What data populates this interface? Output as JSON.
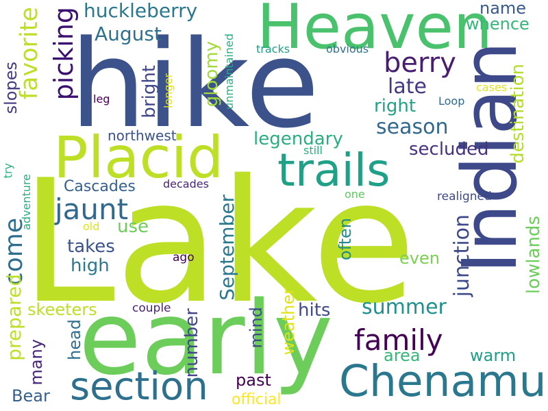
{
  "word_cloud": {
    "palette": {
      "yellow_green": "#bddf26",
      "green": "#6ccd5a",
      "teal_green": "#29af7f",
      "teal": "#21918c",
      "blue_teal": "#2a788e",
      "steel_blue": "#355f8d",
      "indigo": "#443983",
      "deep_purple": "#482475",
      "yellow": "#dfe318"
    },
    "words": [
      {
        "text": "Lake",
        "color": "#bddf26"
      },
      {
        "text": "hike",
        "color": "#3b528b"
      },
      {
        "text": "Heaven",
        "color": "#4ac16d"
      },
      {
        "text": "Indian",
        "color": "#3e4989"
      },
      {
        "text": "early",
        "color": "#6ccd5a"
      },
      {
        "text": "Placid",
        "color": "#bddf26"
      },
      {
        "text": "trails",
        "color": "#1fa187"
      },
      {
        "text": "Chenamus",
        "color": "#2a788e"
      },
      {
        "text": "section",
        "color": "#2d708e"
      },
      {
        "text": "family",
        "color": "#440154"
      },
      {
        "text": "jaunt",
        "color": "#31688e"
      },
      {
        "text": "berry",
        "color": "#481f70"
      },
      {
        "text": "picking",
        "color": "#3b0f70"
      },
      {
        "text": "favorite",
        "color": "#bddf26"
      },
      {
        "text": "huckleberry",
        "color": "#2a788e"
      },
      {
        "text": "August",
        "color": "#2d708e"
      },
      {
        "text": "season",
        "color": "#31688e"
      },
      {
        "text": "late",
        "color": "#453781"
      },
      {
        "text": "right",
        "color": "#20a386"
      },
      {
        "text": "secluded",
        "color": "#46327e"
      },
      {
        "text": "destination",
        "color": "#b5de2b"
      },
      {
        "text": "come",
        "color": "#2e6e8e"
      },
      {
        "text": "September",
        "color": "#2a788e"
      },
      {
        "text": "summer",
        "color": "#21918c"
      },
      {
        "text": "junction",
        "color": "#3e4989"
      },
      {
        "text": "lowlands",
        "color": "#6ccd5a"
      },
      {
        "text": "prepared",
        "color": "#bddf26"
      },
      {
        "text": "legendary",
        "color": "#29af7f"
      },
      {
        "text": "Cascades",
        "color": "#355f8d"
      },
      {
        "text": "gloomy",
        "color": "#a2da37"
      },
      {
        "text": "bright",
        "color": "#404688"
      },
      {
        "text": "slopes",
        "color": "#443983"
      },
      {
        "text": "name",
        "color": "#38598c"
      },
      {
        "text": "whence",
        "color": "#35b779"
      },
      {
        "text": "often",
        "color": "#228c8d"
      },
      {
        "text": "even",
        "color": "#7ad151"
      },
      {
        "text": "high",
        "color": "#2a788e"
      },
      {
        "text": "takes",
        "color": "#3b528b"
      },
      {
        "text": "use",
        "color": "#6ccd5a"
      },
      {
        "text": "hits",
        "color": "#3e4989"
      },
      {
        "text": "weather",
        "color": "#dfe318"
      },
      {
        "text": "mind",
        "color": "#3e4989"
      },
      {
        "text": "number",
        "color": "#404688"
      },
      {
        "text": "head",
        "color": "#2e6e8e"
      },
      {
        "text": "many",
        "color": "#482878"
      },
      {
        "text": "skeeters",
        "color": "#bddf26"
      },
      {
        "text": "area",
        "color": "#35b779"
      },
      {
        "text": "warm",
        "color": "#1f9e89"
      },
      {
        "text": "past",
        "color": "#440154"
      },
      {
        "text": "Bear",
        "color": "#355f8d"
      },
      {
        "text": "official",
        "color": "#fde725"
      },
      {
        "text": "northwest",
        "color": "#3b528b"
      },
      {
        "text": "decades",
        "color": "#482475"
      },
      {
        "text": "realigned",
        "color": "#3e4989"
      },
      {
        "text": "couple",
        "color": "#481f70"
      },
      {
        "text": "ago",
        "color": "#440154"
      },
      {
        "text": "old",
        "color": "#dfe318"
      },
      {
        "text": "adventure",
        "color": "#26ad81"
      },
      {
        "text": "try",
        "color": "#29af7f"
      },
      {
        "text": "one",
        "color": "#5ec962"
      },
      {
        "text": "still",
        "color": "#29af7f"
      },
      {
        "text": "unmaintained",
        "color": "#29af7f"
      },
      {
        "text": "longer",
        "color": "#dfe318"
      },
      {
        "text": "leg",
        "color": "#440154"
      },
      {
        "text": "tracks",
        "color": "#1f9e89"
      },
      {
        "text": "obvious",
        "color": "#2c728e"
      },
      {
        "text": "cases",
        "color": "#dfe318"
      },
      {
        "text": "Loop",
        "color": "#31688e"
      }
    ]
  }
}
